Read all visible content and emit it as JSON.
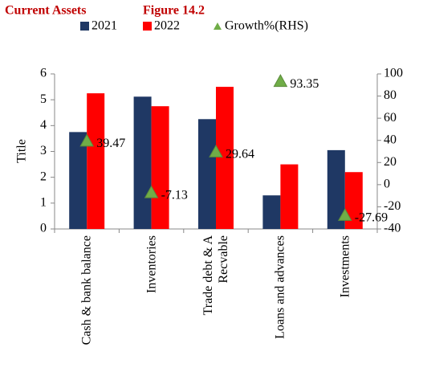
{
  "chart_data": {
    "type": "bar",
    "title": "Current Assets",
    "subtitle": "Figure 14.2",
    "y_label": "Title",
    "categories": [
      "Cash & bank balance",
      "Inventories",
      "Trade debt & A Recvable",
      "Loans and advances",
      "Investments"
    ],
    "series": [
      {
        "name": "2021",
        "color": "#1f3864",
        "values": [
          3.75,
          5.12,
          4.25,
          1.3,
          3.05
        ]
      },
      {
        "name": "2022",
        "color": "#ff0000",
        "values": [
          5.25,
          4.75,
          5.5,
          2.5,
          2.2
        ]
      },
      {
        "name": "Growth%(RHS)",
        "color": "#70ad47",
        "axis": "y2",
        "marker": "triangle",
        "values": [
          39.47,
          -7.13,
          29.64,
          93.35,
          -27.69
        ]
      }
    ],
    "ylim": [
      0,
      6
    ],
    "yticks": [
      0,
      1,
      2,
      3,
      4,
      5,
      6
    ],
    "y2lim": [
      -40,
      100
    ],
    "y2ticks": [
      -40,
      -20,
      0,
      20,
      40,
      60,
      80,
      100
    ],
    "legend": "top",
    "grid": false
  }
}
